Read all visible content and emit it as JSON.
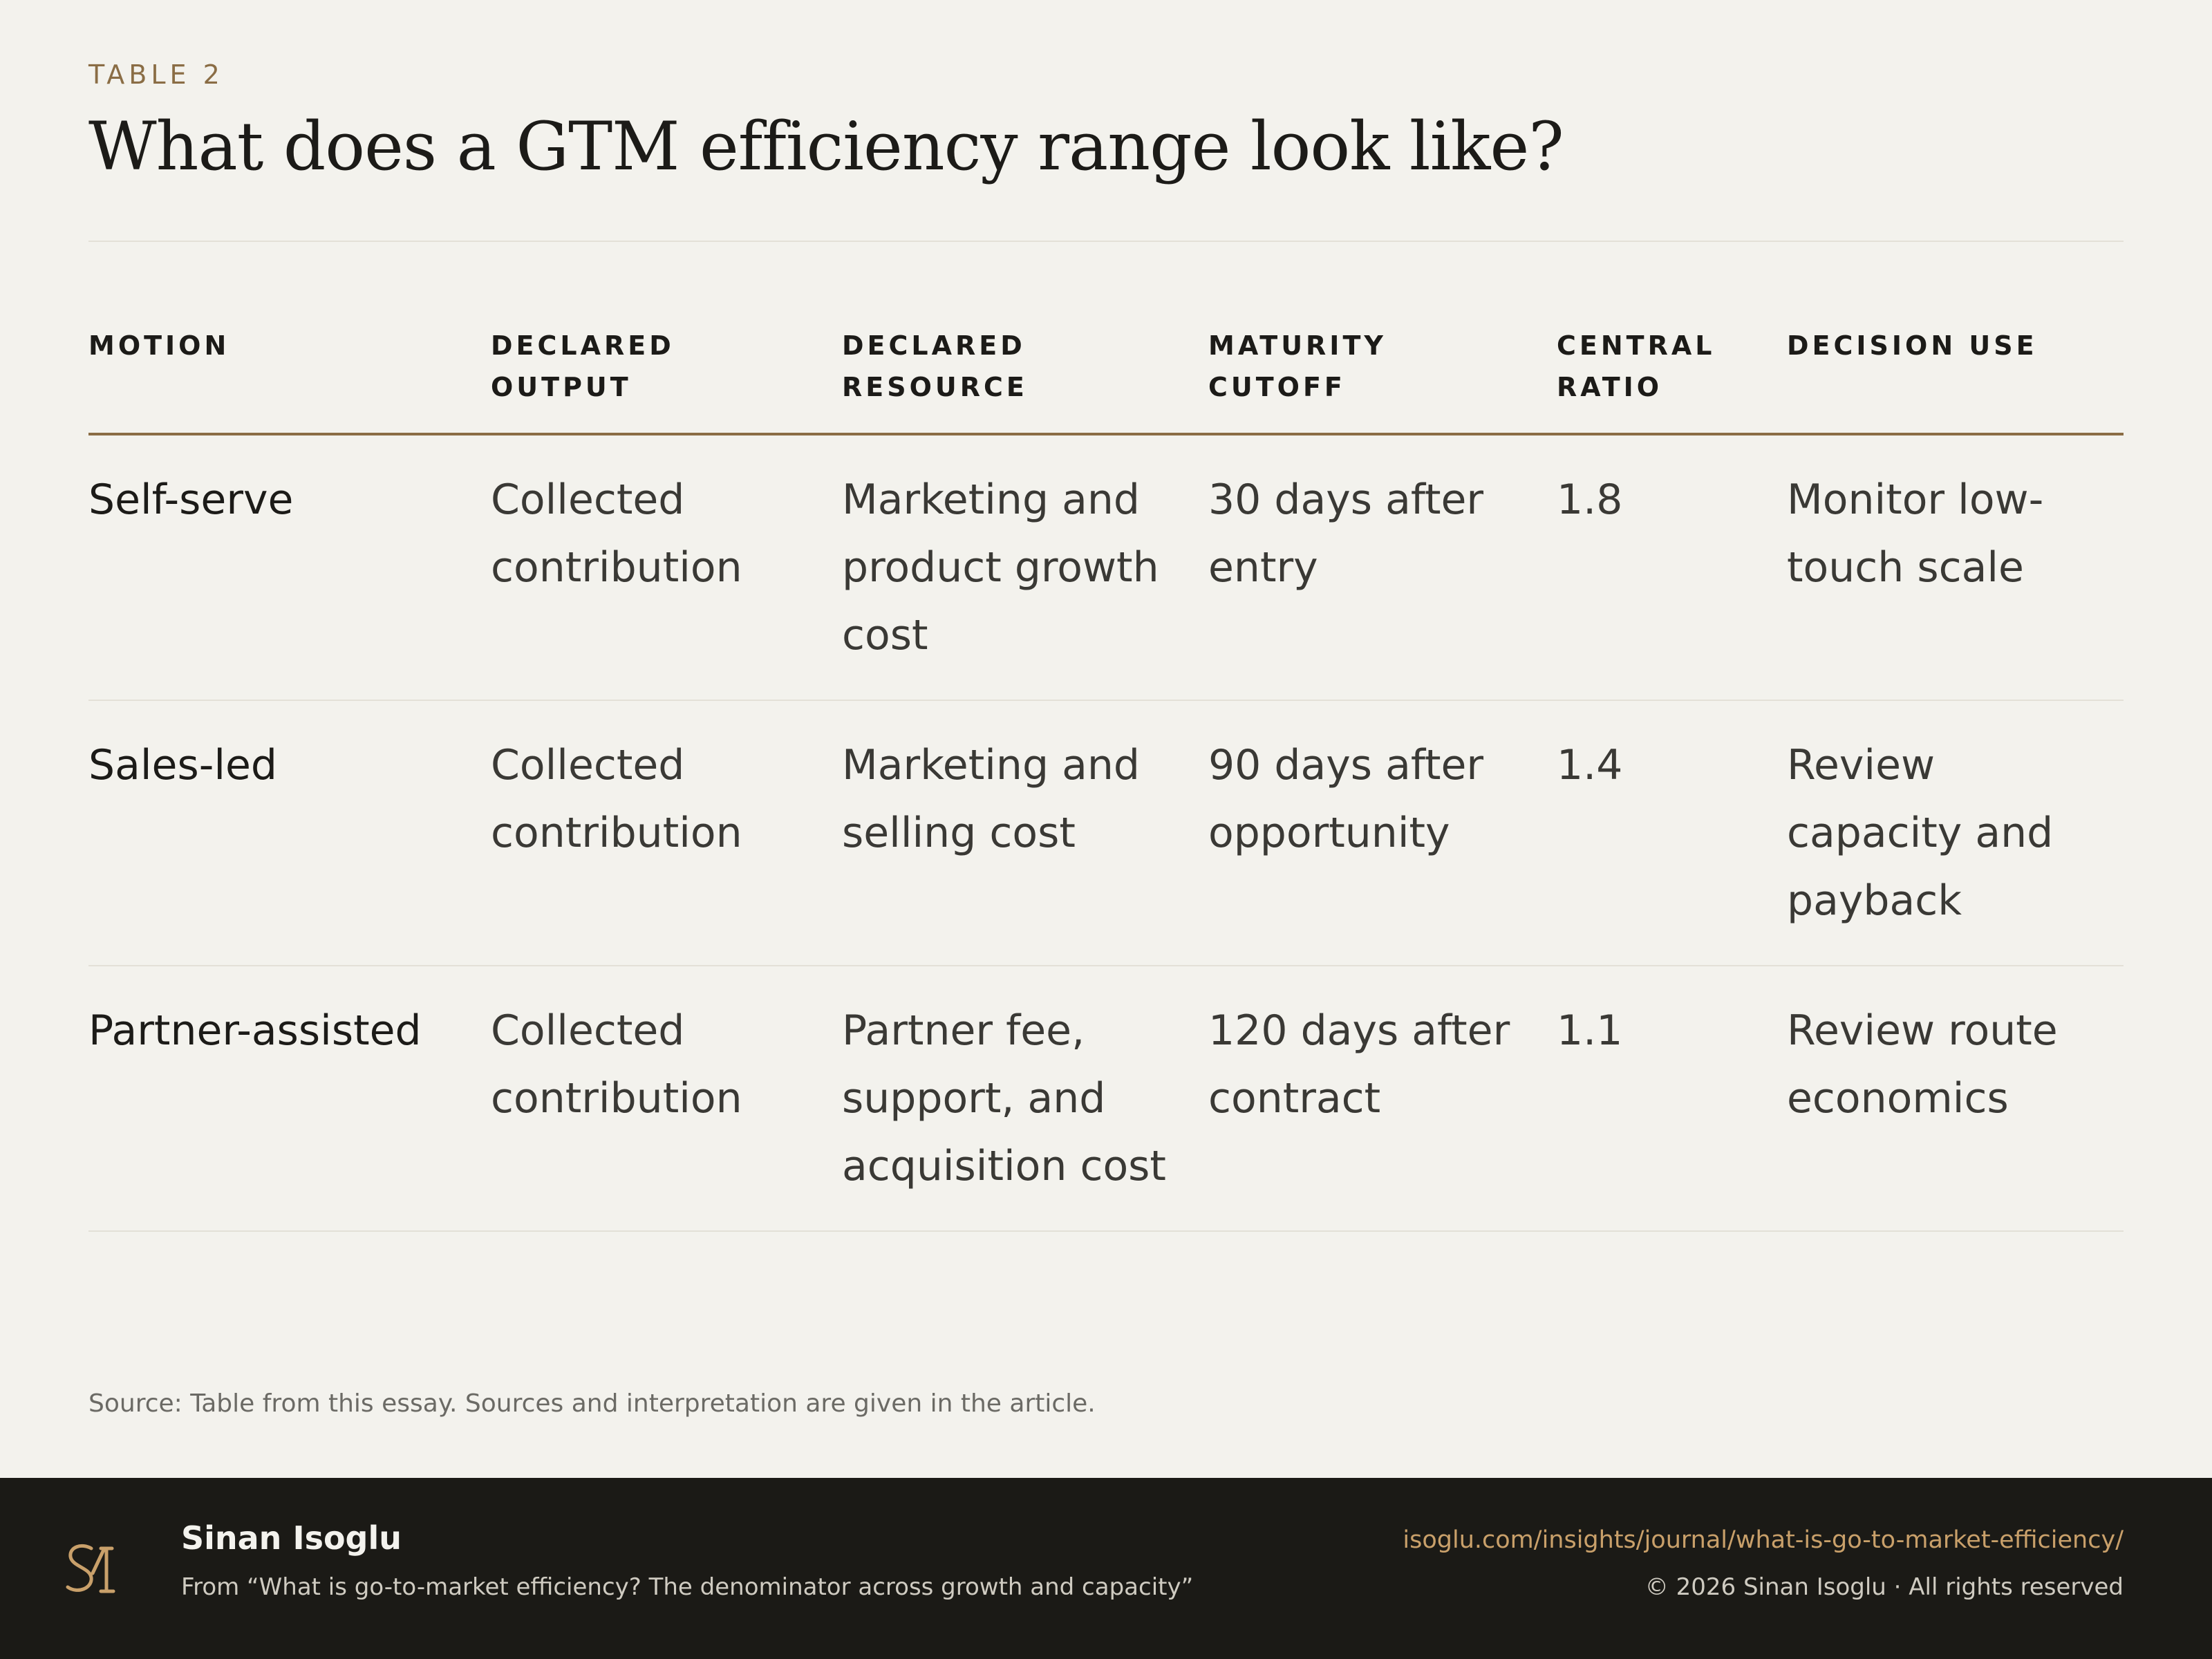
{
  "header": {
    "kicker": "TABLE 2",
    "title": "What does a GTM efficiency range look like?"
  },
  "table": {
    "columns": [
      "MOTION",
      "DECLARED OUTPUT",
      "DECLARED RESOURCE",
      "MATURITY CUTOFF",
      "CENTRAL RATIO",
      "DECISION USE"
    ],
    "rows": [
      {
        "motion": "Self-serve",
        "output": "Collected contribution",
        "resource": "Marketing and product growth cost",
        "maturity": "30 days after entry",
        "ratio": "1.8",
        "decision": "Monitor low-touch scale"
      },
      {
        "motion": "Sales-led",
        "output": "Collected contribution",
        "resource": "Marketing and selling cost",
        "maturity": "90 days after opportunity",
        "ratio": "1.4",
        "decision": "Review capacity and payback"
      },
      {
        "motion": "Partner-assisted",
        "output": "Collected contribution",
        "resource": "Partner fee, support, and acquisition cost",
        "maturity": "120 days after contract",
        "ratio": "1.1",
        "decision": "Review route economics"
      }
    ]
  },
  "source": "Source: Table from this essay. Sources and interpretation are given in the article.",
  "footer": {
    "logo_icon": "si-monogram-icon",
    "logo_color": "#c9a06a",
    "author": "Sinan Isoglu",
    "from": "From “What is go-to-market efficiency? The denominator across growth and capacity”",
    "url": "isoglu.com/insights/journal/what-is-go-to-market-efficiency/",
    "copyright": "© 2026 Sinan Isoglu · All rights reserved"
  }
}
